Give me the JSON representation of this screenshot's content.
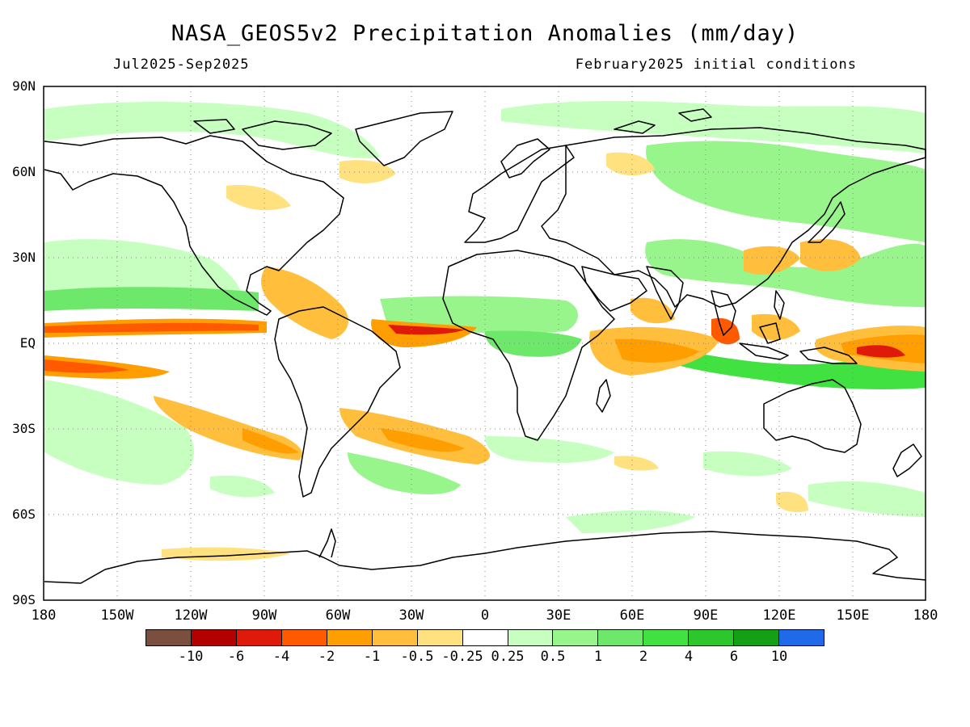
{
  "title": "NASA_GEOS5v2 Precipitation Anomalies (mm/day)",
  "period": "Jul2025-Sep2025",
  "initial_conditions": "February2025 initial conditions",
  "lat_labels": [
    "90N",
    "60N",
    "30N",
    "EQ",
    "30S",
    "60S",
    "90S"
  ],
  "lon_labels": [
    "180",
    "150W",
    "120W",
    "90W",
    "60W",
    "30W",
    "0",
    "30E",
    "60E",
    "90E",
    "120E",
    "150E",
    "180"
  ],
  "colorbar": {
    "colors": [
      "#7a4f3f",
      "#b30000",
      "#e01a0a",
      "#ff5a00",
      "#ff9e00",
      "#ffbf3c",
      "#ffe27f",
      "#ffffff",
      "#c6ffc0",
      "#98f58c",
      "#6ee86a",
      "#42e142",
      "#2dc62d",
      "#159f15",
      "#1e6ae8"
    ],
    "labels": [
      "-10",
      "-6",
      "-4",
      "-2",
      "-1",
      "-0.5",
      "-0.25",
      "0.25",
      "0.5",
      "1",
      "2",
      "4",
      "6",
      "10"
    ]
  }
}
